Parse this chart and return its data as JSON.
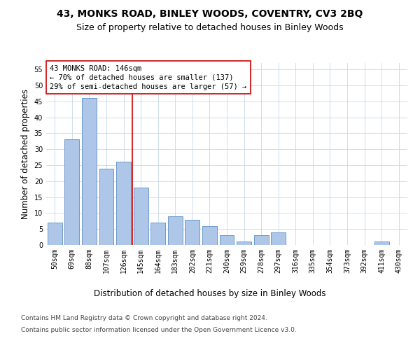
{
  "title1": "43, MONKS ROAD, BINLEY WOODS, COVENTRY, CV3 2BQ",
  "title2": "Size of property relative to detached houses in Binley Woods",
  "xlabel": "Distribution of detached houses by size in Binley Woods",
  "ylabel": "Number of detached properties",
  "categories": [
    "50sqm",
    "69sqm",
    "88sqm",
    "107sqm",
    "126sqm",
    "145sqm",
    "164sqm",
    "183sqm",
    "202sqm",
    "221sqm",
    "240sqm",
    "259sqm",
    "278sqm",
    "297sqm",
    "316sqm",
    "335sqm",
    "354sqm",
    "373sqm",
    "392sqm",
    "411sqm",
    "430sqm"
  ],
  "values": [
    7,
    33,
    46,
    24,
    26,
    18,
    7,
    9,
    8,
    6,
    3,
    1,
    3,
    4,
    0,
    0,
    0,
    0,
    0,
    1,
    0
  ],
  "bar_color": "#aec6e8",
  "bar_edge_color": "#5a8fc2",
  "annotation_line1": "43 MONKS ROAD: 146sqm",
  "annotation_line2": "← 70% of detached houses are smaller (137)",
  "annotation_line3": "29% of semi-detached houses are larger (57) →",
  "annotation_box_color": "#ffffff",
  "annotation_box_edge": "#cc0000",
  "vline_color": "#cc0000",
  "vline_x_index": 4.5,
  "ylim": [
    0,
    57
  ],
  "yticks": [
    0,
    5,
    10,
    15,
    20,
    25,
    30,
    35,
    40,
    45,
    50,
    55
  ],
  "footer1": "Contains HM Land Registry data © Crown copyright and database right 2024.",
  "footer2": "Contains public sector information licensed under the Open Government Licence v3.0.",
  "title_fontsize": 10,
  "subtitle_fontsize": 9,
  "axis_label_fontsize": 8.5,
  "tick_fontsize": 7,
  "annotation_fontsize": 7.5,
  "footer_fontsize": 6.5
}
